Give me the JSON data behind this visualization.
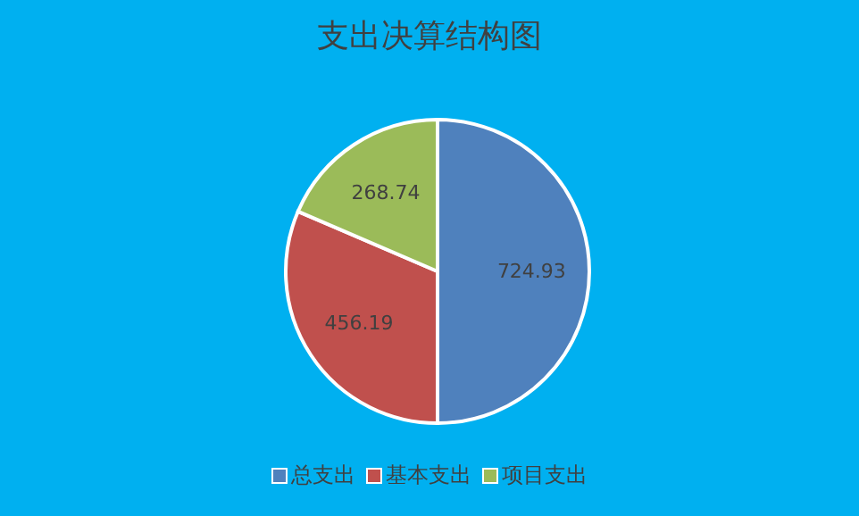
{
  "chart_data": {
    "type": "pie",
    "title": "支出决算结构图",
    "categories": [
      "总支出",
      "基本支出",
      "项目支出"
    ],
    "values": [
      724.93,
      456.19,
      268.74
    ],
    "colors": [
      "#4f81bd",
      "#c0504d",
      "#9bbb59"
    ],
    "data_labels": true,
    "legend": "bottom"
  }
}
